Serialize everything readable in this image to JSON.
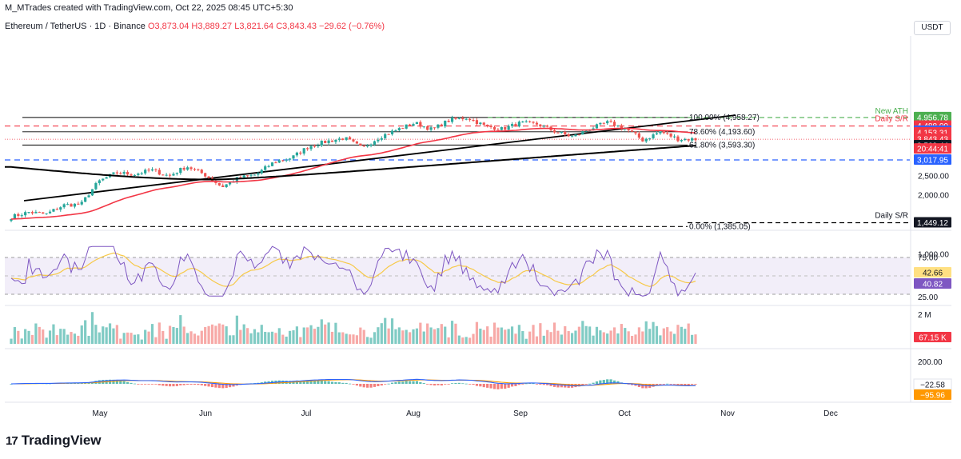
{
  "header": {
    "author_line": "M_MTrades created with TradingView.com, Oct 22, 2025 08:45 UTC+5:30",
    "symbol": "Ethereum / TetherUS · 1D · Binance",
    "open": "O3,873.04",
    "high": "H3,889.27",
    "low": "L3,821.64",
    "close": "C3,843.43",
    "change": "−29.62 (−0.76%)",
    "currency": "USDT"
  },
  "logo": {
    "mark": "17",
    "text": "TradingView"
  },
  "price_axis": {
    "ticks": [
      "2,500.00",
      "2,000.00",
      "1,000.00"
    ],
    "labels": [
      {
        "value": 4956.78,
        "text": "4,956.78",
        "bg": "#4caf50"
      },
      {
        "value": 4488.0,
        "text": "4,488.00",
        "bg": "#f23645"
      },
      {
        "value": 4232.11,
        "text": "4,232.11",
        "bg": "#2962ff"
      },
      {
        "value": 4153.31,
        "text": "4,153.31",
        "bg": "#f23645"
      },
      {
        "value": 3843.43,
        "text": "3,843.43",
        "bg": "#f23645"
      },
      {
        "value": 3569.44,
        "text": "3,569.44",
        "bg": "#131722"
      },
      {
        "value": 3017.95,
        "text": "3,017.95",
        "bg": "#2962ff"
      },
      {
        "value": 1449.12,
        "text": "1,449.12",
        "bg": "#131722"
      }
    ],
    "countdown": "20:44:41"
  },
  "time_axis": [
    "May",
    "Jun",
    "Jul",
    "Aug",
    "Sep",
    "Oct",
    "Nov",
    "Dec"
  ],
  "annotations": {
    "new_ath": "New ATH",
    "daily_sr_top": "Daily S/R",
    "daily_sr_bottom": "Daily S/R",
    "fib_100": "100.00% (4,958.27)",
    "fib_786": "78.60% (4,193.60)",
    "fib_618": "61.80% (3,593.30)",
    "fib_0": "0.00% (1,385.05)"
  },
  "rsi_pane": {
    "ticks": [
      "75.00",
      "25.00"
    ],
    "labels": [
      {
        "text": "42.66",
        "bg": "#ffe082",
        "fg": "#131722"
      },
      {
        "text": "40.82",
        "bg": "#7e57c2",
        "fg": "#ffffff"
      }
    ]
  },
  "volume_pane": {
    "ticks": [
      "2 M"
    ],
    "label": {
      "text": "67.15 K",
      "bg": "#f23645"
    }
  },
  "macd_pane": {
    "ticks": [
      "200.00"
    ],
    "labels": [
      {
        "text": "−22.58",
        "bg": "#ffffff",
        "fg": "#131722"
      },
      {
        "text": "−95.96",
        "bg": "#ff9800",
        "fg": "#ffffff"
      }
    ]
  },
  "colors": {
    "up": "#26a69a",
    "down": "#ef5350",
    "ema_fast": "#f23645",
    "ema_slow": "#000000",
    "rsi": "#7e57c2",
    "rsi_ma": "#f7c948",
    "macd": "#2962ff",
    "signal": "#ff9800"
  },
  "chart_data": {
    "type": "candlestick",
    "symbol": "ETH/USDT",
    "timeframe": "1D",
    "price_levels": {
      "fib_100": 4958.27,
      "fib_786": 4193.6,
      "fib_618": 3593.3,
      "fib_0": 1385.05,
      "new_ath": 4956.78,
      "daily_sr_top": 4488.0,
      "blue_dashed": 3017.95,
      "daily_sr_bottom": 1449.12,
      "ema_red": 4153.31,
      "ema_black": 3569.44,
      "last": 3843.43
    },
    "close_path": [
      [
        "Apr 10",
        1550
      ],
      [
        "Apr 15",
        1640
      ],
      [
        "Apr 20",
        1600
      ],
      [
        "Apr 25",
        1780
      ],
      [
        "May 1",
        1800
      ],
      [
        "May 8",
        2350
      ],
      [
        "May 12",
        2600
      ],
      [
        "May 20",
        2550
      ],
      [
        "May 28",
        2680
      ],
      [
        "Jun 5",
        2500
      ],
      [
        "Jun 11",
        2800
      ],
      [
        "Jun 16",
        2550
      ],
      [
        "Jun 22",
        2200
      ],
      [
        "Jun 28",
        2450
      ],
      [
        "Jul 5",
        2550
      ],
      [
        "Jul 10",
        2950
      ],
      [
        "Jul 14",
        3100
      ],
      [
        "Jul 18",
        3550
      ],
      [
        "Jul 22",
        3750
      ],
      [
        "Jul 28",
        3900
      ],
      [
        "Aug 2",
        3450
      ],
      [
        "Aug 8",
        3950
      ],
      [
        "Aug 12",
        4300
      ],
      [
        "Aug 14",
        4650
      ],
      [
        "Aug 18",
        4300
      ],
      [
        "Aug 22",
        4820
      ],
      [
        "Aug 24",
        4950
      ],
      [
        "Aug 28",
        4480
      ],
      [
        "Sep 5",
        4330
      ],
      [
        "Sep 12",
        4650
      ],
      [
        "Sep 18",
        4580
      ],
      [
        "Sep 22",
        4200
      ],
      [
        "Sep 26",
        3950
      ],
      [
        "Oct 1",
        4350
      ],
      [
        "Oct 6",
        4680
      ],
      [
        "Oct 9",
        4350
      ],
      [
        "Oct 10",
        3800
      ],
      [
        "Oct 13",
        4200
      ],
      [
        "Oct 17",
        3850
      ],
      [
        "Oct 21",
        3843
      ]
    ]
  }
}
